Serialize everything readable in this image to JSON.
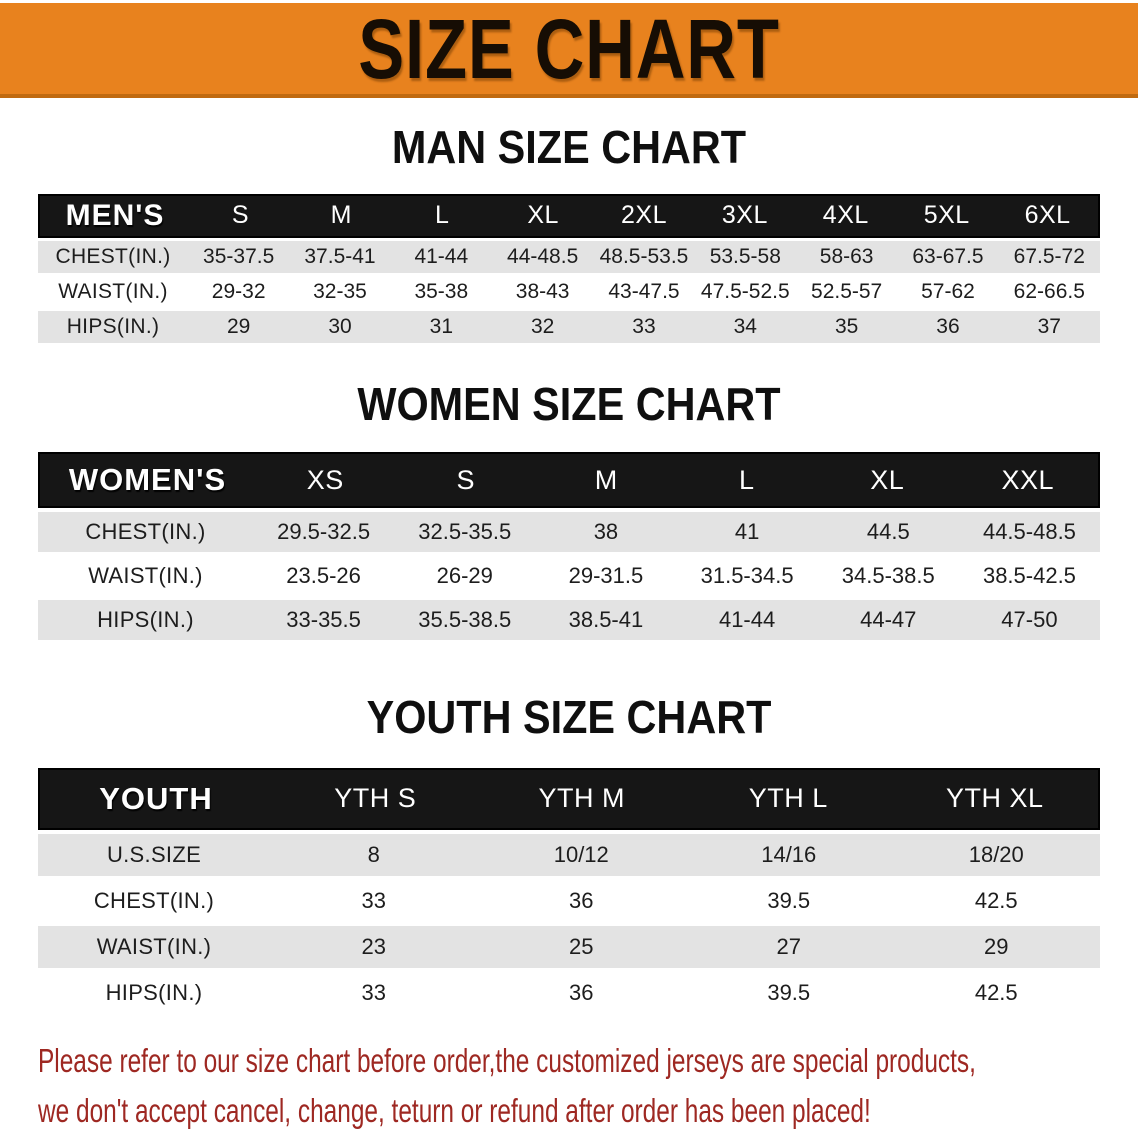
{
  "banner": {
    "title": "SIZE CHART",
    "bg_color": "#e8821e"
  },
  "colors": {
    "header_bar": "#161616",
    "row_shaded": "#e3e3e3",
    "disclaimer_text": "#9e2822"
  },
  "sections": [
    {
      "title": "MAN SIZE CHART",
      "header": {
        "label": "MEN'S",
        "sizes": [
          "S",
          "M",
          "L",
          "XL",
          "2XL",
          "3XL",
          "4XL",
          "5XL",
          "6XL"
        ]
      },
      "rows": [
        {
          "label": "CHEST(IN.)",
          "values": [
            "35-37.5",
            "37.5-41",
            "41-44",
            "44-48.5",
            "48.5-53.5",
            "53.5-58",
            "58-63",
            "63-67.5",
            "67.5-72"
          ]
        },
        {
          "label": "WAIST(IN.)",
          "values": [
            "29-32",
            "32-35",
            "35-38",
            "38-43",
            "43-47.5",
            "47.5-52.5",
            "52.5-57",
            "57-62",
            "62-66.5"
          ]
        },
        {
          "label": "HIPS(IN.)",
          "values": [
            "29",
            "30",
            "31",
            "32",
            "33",
            "34",
            "35",
            "36",
            "37"
          ]
        }
      ]
    },
    {
      "title": "WOMEN SIZE CHART",
      "header": {
        "label": "WOMEN'S",
        "sizes": [
          "XS",
          "S",
          "M",
          "L",
          "XL",
          "XXL"
        ]
      },
      "rows": [
        {
          "label": "CHEST(IN.)",
          "values": [
            "29.5-32.5",
            "32.5-35.5",
            "38",
            "41",
            "44.5",
            "44.5-48.5"
          ]
        },
        {
          "label": "WAIST(IN.)",
          "values": [
            "23.5-26",
            "26-29",
            "29-31.5",
            "31.5-34.5",
            "34.5-38.5",
            "38.5-42.5"
          ]
        },
        {
          "label": "HIPS(IN.)",
          "values": [
            "33-35.5",
            "35.5-38.5",
            "38.5-41",
            "41-44",
            "44-47",
            "47-50"
          ]
        }
      ]
    },
    {
      "title": "YOUTH SIZE CHART",
      "header": {
        "label": "YOUTH",
        "sizes": [
          "YTH S",
          "YTH M",
          "YTH L",
          "YTH XL"
        ]
      },
      "rows": [
        {
          "label": "U.S.SIZE",
          "values": [
            "8",
            "10/12",
            "14/16",
            "18/20"
          ]
        },
        {
          "label": "CHEST(IN.)",
          "values": [
            "33",
            "36",
            "39.5",
            "42.5"
          ]
        },
        {
          "label": "WAIST(IN.)",
          "values": [
            "23",
            "25",
            "27",
            "29"
          ]
        },
        {
          "label": "HIPS(IN.)",
          "values": [
            "33",
            "36",
            "39.5",
            "42.5"
          ]
        }
      ]
    }
  ],
  "disclaimer": {
    "lines": [
      "Please refer to our size chart before order,the customized jerseys are special products,",
      "we don't accept cancel, change, teturn or refund after order has been placed!"
    ]
  }
}
